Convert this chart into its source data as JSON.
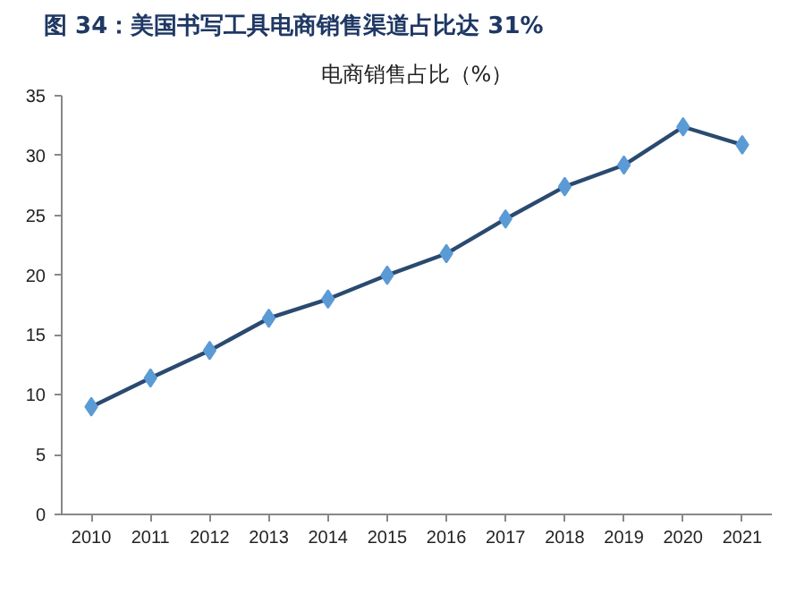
{
  "chart_data": {
    "type": "line",
    "title": "图 34：美国书写工具电商销售渠道占比达 31%",
    "subtitle": "电商销售占比（%）",
    "categories": [
      "2010",
      "2011",
      "2012",
      "2013",
      "2014",
      "2015",
      "2016",
      "2017",
      "2018",
      "2019",
      "2020",
      "2021"
    ],
    "series": [
      {
        "color": "#2a4a70",
        "values": [
          9.0,
          11.4,
          13.7,
          16.4,
          18.0,
          20.0,
          21.8,
          24.7,
          27.4,
          29.2,
          32.4,
          30.9
        ]
      }
    ],
    "ylim": [
      0,
      35
    ],
    "yticks": [
      0,
      5,
      10,
      15,
      20,
      25,
      30,
      35
    ],
    "grid": false,
    "marker": "diamond",
    "line_style": "solid"
  }
}
